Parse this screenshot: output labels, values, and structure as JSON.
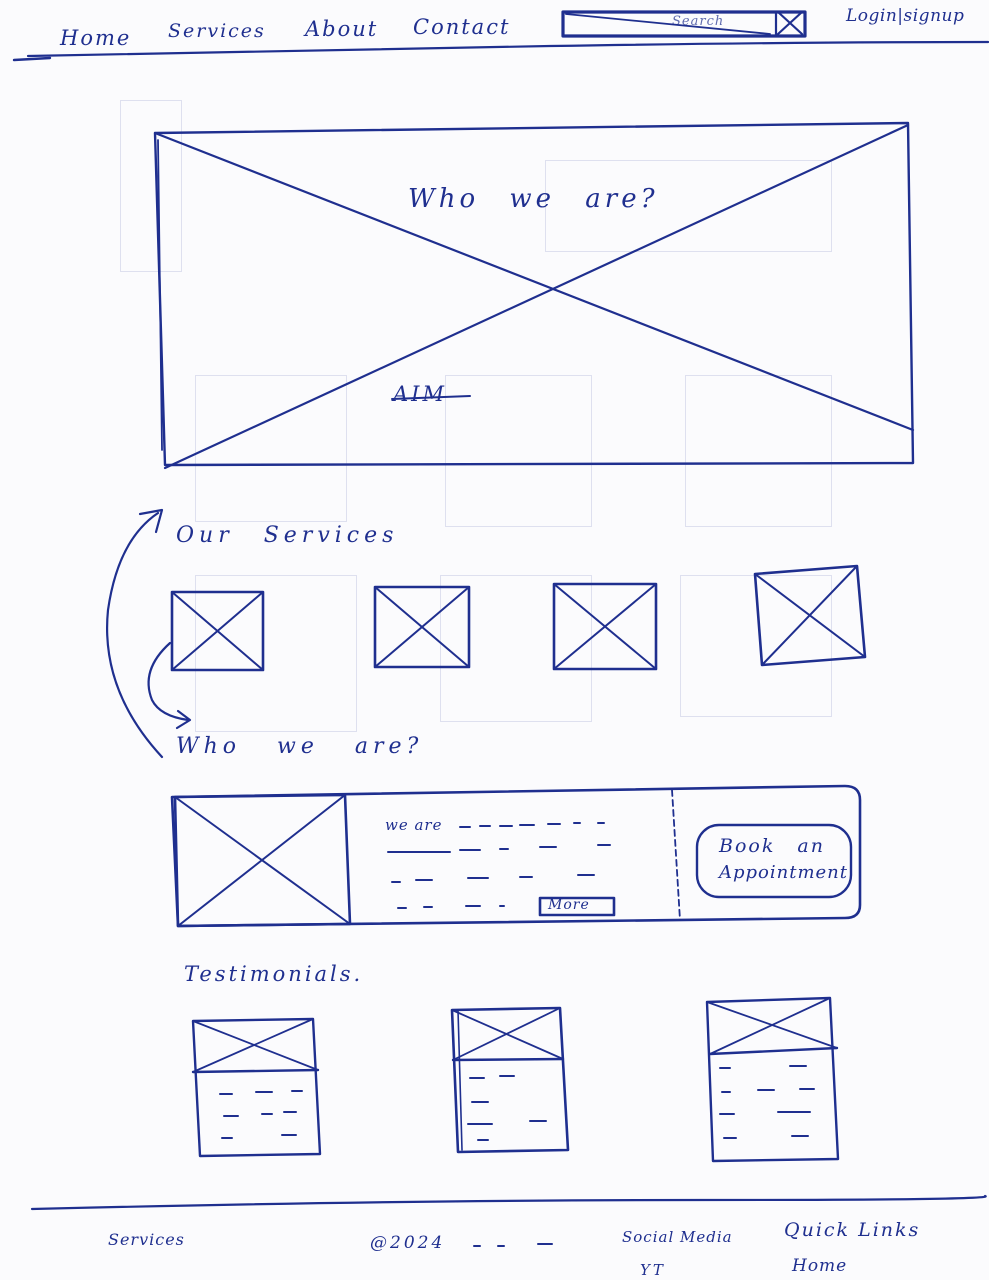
{
  "nav": {
    "items": [
      {
        "label": "Home"
      },
      {
        "label": "Services"
      },
      {
        "label": "About"
      },
      {
        "label": "Contact"
      }
    ],
    "search_text": "Search",
    "auth_label": "Login|signup"
  },
  "hero": {
    "title": "Who we are?",
    "aim_text": "AIM"
  },
  "services": {
    "heading": "Our Services",
    "count": 4
  },
  "who": {
    "heading": "Who we are?",
    "lead_text": "we are",
    "more_label": "More",
    "cta_line1": "Book an",
    "cta_line2": "Appointment"
  },
  "testimonials": {
    "heading": "Testimonials.",
    "count": 3
  },
  "footer": {
    "services_label": "Services",
    "copyright": "@2024",
    "social_label": "Social Media",
    "social_item": "YT",
    "quick_links_label": "Quick Links",
    "quick_link_home": "Home"
  },
  "colors": {
    "ink": "#1f2f8f",
    "paper": "#fbfbfd",
    "faint_ghost": "#c6cbe3"
  }
}
